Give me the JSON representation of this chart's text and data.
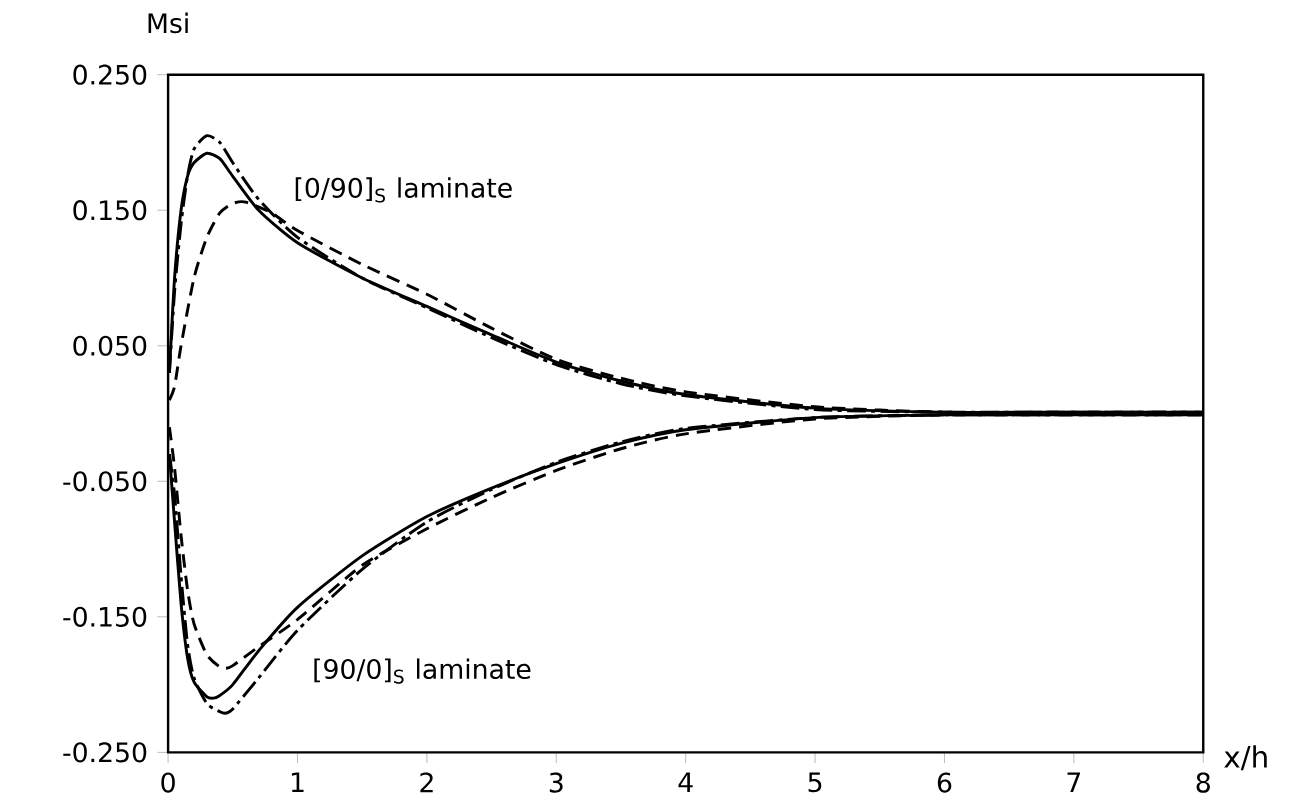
{
  "chart_data": {
    "type": "line",
    "xlabel": "x/h",
    "ylabel": "Msi",
    "xlim": [
      0,
      8
    ],
    "xticks": [
      0,
      1,
      2,
      3,
      4,
      5,
      6,
      7,
      8
    ],
    "ylim": [
      -0.25,
      0.25
    ],
    "yticks": [
      {
        "value": -0.25,
        "label": "-0.250"
      },
      {
        "value": -0.15,
        "label": "-0.150"
      },
      {
        "value": -0.05,
        "label": "-0.050"
      },
      {
        "value": 0.05,
        "label": "0.050"
      },
      {
        "value": 0.15,
        "label": "0.150"
      },
      {
        "value": 0.25,
        "label": "0.250"
      }
    ],
    "grid": false,
    "marker": "none",
    "annotations": [
      "[0/90]$_{S}$ laminate",
      "[90/0]$_{S}$ laminate"
    ],
    "series": [
      {
        "color": "#000000",
        "line_style": "solid",
        "x": [
          0.01,
          0.05,
          0.1,
          0.15,
          0.2,
          0.3,
          0.4,
          0.5,
          0.7,
          1,
          1.5,
          2,
          2.5,
          3,
          3.5,
          4,
          5,
          6,
          7,
          8
        ],
        "values": [
          0.03,
          0.1,
          0.15,
          0.175,
          0.185,
          0.192,
          0.188,
          0.175,
          0.15,
          0.126,
          0.1,
          0.079,
          0.058,
          0.038,
          0.024,
          0.014,
          0.004,
          0.001,
          0.001,
          0.001
        ]
      },
      {
        "color": "#000000",
        "line_style": "dashed",
        "x": [
          0.01,
          0.05,
          0.1,
          0.2,
          0.3,
          0.4,
          0.5,
          0.6,
          0.8,
          1,
          1.5,
          2,
          2.5,
          3,
          3.5,
          4,
          5,
          6,
          7,
          8
        ],
        "values": [
          0.01,
          0.02,
          0.05,
          0.1,
          0.13,
          0.148,
          0.155,
          0.156,
          0.148,
          0.135,
          0.11,
          0.088,
          0.063,
          0.04,
          0.026,
          0.016,
          0.005,
          0.001,
          0.001,
          0.001
        ]
      },
      {
        "color": "#000000",
        "line_style": "dashdot",
        "x": [
          0.01,
          0.05,
          0.1,
          0.15,
          0.2,
          0.3,
          0.4,
          0.5,
          0.7,
          1,
          1.5,
          2,
          2.5,
          3,
          3.5,
          4,
          5,
          6,
          7,
          8
        ],
        "values": [
          0.03,
          0.09,
          0.14,
          0.175,
          0.195,
          0.205,
          0.2,
          0.185,
          0.158,
          0.13,
          0.1,
          0.078,
          0.056,
          0.036,
          0.022,
          0.013,
          0.003,
          0.001,
          0.001,
          0.001
        ]
      },
      {
        "color": "#000000",
        "line_style": "solid",
        "x": [
          0.01,
          0.05,
          0.1,
          0.15,
          0.2,
          0.3,
          0.35,
          0.4,
          0.5,
          0.7,
          1,
          1.5,
          2,
          2.5,
          3,
          3.5,
          4,
          5,
          6,
          7,
          8
        ],
        "values": [
          -0.03,
          -0.08,
          -0.14,
          -0.18,
          -0.198,
          -0.209,
          -0.21,
          -0.208,
          -0.2,
          -0.175,
          -0.143,
          -0.105,
          -0.076,
          -0.055,
          -0.037,
          -0.022,
          -0.012,
          -0.003,
          -0.001,
          -0.001,
          -0.001
        ]
      },
      {
        "color": "#000000",
        "line_style": "dashed",
        "x": [
          0.01,
          0.05,
          0.1,
          0.15,
          0.2,
          0.3,
          0.4,
          0.45,
          0.5,
          0.7,
          1,
          1.5,
          2,
          2.5,
          3,
          3.5,
          4,
          5,
          6,
          7,
          8
        ],
        "values": [
          -0.01,
          -0.04,
          -0.09,
          -0.13,
          -0.155,
          -0.178,
          -0.187,
          -0.188,
          -0.186,
          -0.172,
          -0.152,
          -0.112,
          -0.085,
          -0.062,
          -0.042,
          -0.026,
          -0.015,
          -0.004,
          -0.001,
          -0.001,
          -0.001
        ]
      },
      {
        "color": "#000000",
        "line_style": "dashdot",
        "x": [
          0.01,
          0.05,
          0.1,
          0.15,
          0.2,
          0.3,
          0.4,
          0.45,
          0.5,
          0.7,
          1,
          1.5,
          2,
          2.5,
          3,
          3.5,
          4,
          5,
          6,
          7,
          8
        ],
        "values": [
          -0.03,
          -0.06,
          -0.12,
          -0.17,
          -0.195,
          -0.214,
          -0.22,
          -0.221,
          -0.218,
          -0.195,
          -0.16,
          -0.115,
          -0.08,
          -0.056,
          -0.036,
          -0.021,
          -0.011,
          -0.003,
          -0.001,
          -0.001,
          -0.001
        ]
      }
    ]
  }
}
